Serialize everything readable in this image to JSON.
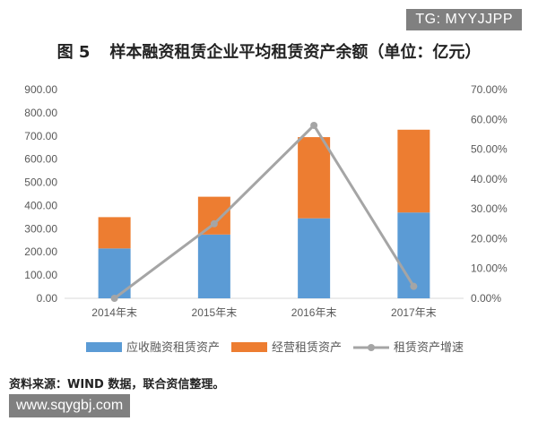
{
  "watermark_top": "TG: MYYJJPP",
  "figure": {
    "number": "图 5",
    "title": "样本融资租赁企业平均租赁资产余额（单位：亿元）"
  },
  "source_note": "资料来源：WIND 数据，联合资信整理。",
  "watermark_bottom": "www.sqygbj.com",
  "colors": {
    "financing": "#5b9bd5",
    "operating": "#ed7d31",
    "growth": "#a5a5a5",
    "axis": "#d9d9d9",
    "text": "#595959"
  },
  "chart_data": {
    "type": "bar",
    "stacked": true,
    "categories": [
      "2014年末",
      "2015年末",
      "2016年末",
      "2017年末"
    ],
    "series": [
      {
        "name": "应收融资租赁资产",
        "type": "bar",
        "axis": "left",
        "values": [
          215,
          275,
          345,
          370
        ]
      },
      {
        "name": "经营租赁资产",
        "type": "bar",
        "axis": "left",
        "values": [
          135,
          163,
          350,
          357
        ]
      },
      {
        "name": "租赁资产增速",
        "type": "line",
        "axis": "right",
        "values": [
          0.0,
          25.0,
          58.0,
          4.0
        ]
      }
    ],
    "y_left": {
      "ylim": [
        0,
        900
      ],
      "ticks": [
        "0.00",
        "100.00",
        "200.00",
        "300.00",
        "400.00",
        "500.00",
        "600.00",
        "700.00",
        "800.00",
        "900.00"
      ]
    },
    "y_right": {
      "ylim": [
        0,
        70
      ],
      "ticks": [
        "0.00%",
        "10.00%",
        "20.00%",
        "30.00%",
        "40.00%",
        "50.00%",
        "60.00%",
        "70.00%"
      ]
    },
    "grid": false,
    "legend": "bottom"
  }
}
